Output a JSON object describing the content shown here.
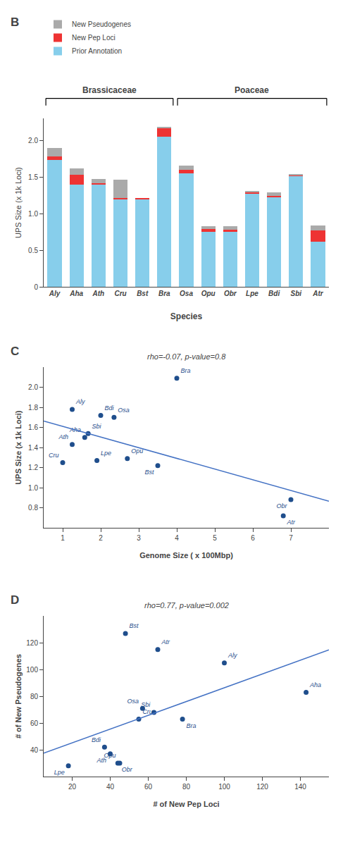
{
  "chart_data": [
    {
      "type": "bar",
      "stacked": true,
      "categories": [
        "Aly",
        "Aha",
        "Ath",
        "Cru",
        "Bst",
        "Bra",
        "Osa",
        "Opu",
        "Obr",
        "Lpe",
        "Bdi",
        "Sbi",
        "Atr"
      ],
      "series": [
        {
          "name": "Prior Annotation",
          "color": "#87CEEB",
          "values": [
            1.73,
            1.4,
            1.4,
            1.2,
            1.2,
            2.05,
            1.55,
            0.75,
            0.75,
            1.28,
            1.22,
            1.52,
            0.62
          ]
        },
        {
          "name": "New Pep Loci",
          "color": "#EE3333",
          "values": [
            0.05,
            0.13,
            0.02,
            0.01,
            0.01,
            0.12,
            0.05,
            0.04,
            0.03,
            0.01,
            0.02,
            0.01,
            0.15
          ]
        },
        {
          "name": "New Pseudogenes",
          "color": "#AAAAAA",
          "values": [
            0.12,
            0.09,
            0.05,
            0.25,
            0.0,
            0.02,
            0.06,
            0.04,
            0.05,
            0.02,
            0.05,
            0.01,
            0.07
          ]
        }
      ],
      "xlabel": "Species",
      "ylabel": "UPS Size (x 1k Loci)",
      "ylim": [
        0,
        2.3
      ],
      "yticks": [
        0,
        0.5,
        {
          "value": 1,
          "label": "1.0"
        },
        1.5,
        {
          "value": 2,
          "label": "2.0"
        }
      ],
      "legend": "upper left",
      "grid": false,
      "annotations": [
        "B",
        "Brassicaceae",
        "Poaceae"
      ]
    },
    {
      "type": "scatter",
      "title": "rho=-0.07, p-value=0.8",
      "xlabel": "Genome Size ( x 100Mbp)",
      "ylabel": "UPS Size (x 1k Loci)",
      "series": [
        {
          "type": "scatter",
          "color": "#1f4e8c",
          "x": [
            1.25,
            1.58,
            1.25,
            2.35,
            2.0,
            3.5,
            4.0,
            1.9,
            7.0,
            1.0,
            2.7,
            1.67,
            6.8
          ],
          "values": [
            1.78,
            1.5,
            1.43,
            1.7,
            1.72,
            1.22,
            2.09,
            1.27,
            0.88,
            1.25,
            1.29,
            1.54,
            0.72
          ],
          "labels": [
            "Aly",
            "Aha",
            "Ath",
            "Osa",
            "Bdi",
            "Bst",
            "Bra",
            "Lpe",
            "Obr",
            "Cru",
            "Opu",
            "Sbi",
            "Atr"
          ]
        },
        {
          "type": "line",
          "color": "#4472c4",
          "x": [
            0.5,
            8
          ],
          "values": [
            1.6648,
            0.8651
          ]
        }
      ],
      "xlim": [
        0.5,
        8
      ],
      "ylim": [
        0.6,
        2.2
      ],
      "xticks": [
        1,
        2,
        3,
        4,
        5,
        6,
        7
      ],
      "yticks": [
        0.8,
        {
          "value": 1,
          "label": "1.0"
        },
        1.2,
        1.4,
        1.6,
        1.8,
        {
          "value": 2,
          "label": "2.0"
        }
      ],
      "grid": false,
      "annotations": [
        "C"
      ]
    },
    {
      "type": "scatter",
      "title": "rho=0.77, p-value=0.002",
      "xlabel": "# of New Pep Loci",
      "ylabel": "# of New Pseudogenes",
      "series": [
        {
          "type": "scatter",
          "color": "#1f4e8c",
          "x": [
            100,
            143,
            44,
            55,
            48,
            78,
            57,
            18,
            45,
            40,
            63,
            37,
            65
          ],
          "values": [
            105,
            83,
            30,
            63,
            127,
            63,
            71,
            28,
            30,
            37,
            68,
            42,
            115
          ],
          "labels": [
            "Aly",
            "Aha",
            "Obr",
            "Cru",
            "Bst",
            "Bra",
            "Osa",
            "Lpe",
            "Opu",
            "Ath",
            "Sbi",
            "Bdi",
            "Atr"
          ]
        },
        {
          "type": "line",
          "color": "#4472c4",
          "x": [
            5,
            155
          ],
          "values": [
            37.4668,
            114.7193
          ]
        }
      ],
      "xlim": [
        5,
        155
      ],
      "ylim": [
        20,
        140
      ],
      "xticks": [
        20,
        40,
        60,
        80,
        100,
        120,
        140
      ],
      "yticks": [
        40,
        60,
        80,
        100,
        120
      ],
      "grid": false,
      "annotations": [
        "D"
      ]
    }
  ]
}
